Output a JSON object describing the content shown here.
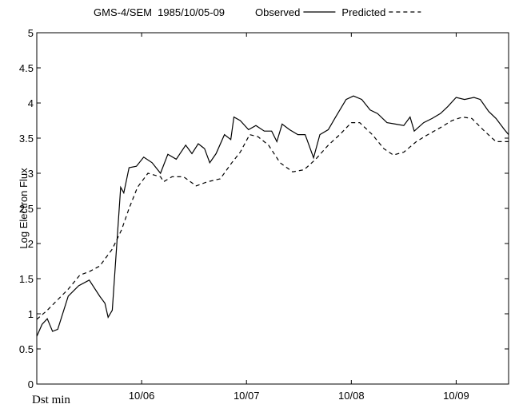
{
  "chart_data": {
    "type": "line",
    "title": "GMS-4/SEM  1985/10/05-09",
    "ylabel": "Log Electron Flux",
    "annotation": "Dst min",
    "xlim": [
      5,
      9.5
    ],
    "xticks": [
      {
        "value": 6,
        "label": "10/06"
      },
      {
        "value": 7,
        "label": "10/07"
      },
      {
        "value": 8,
        "label": "10/08"
      },
      {
        "value": 9,
        "label": "10/09"
      }
    ],
    "ylim": [
      0,
      5
    ],
    "yticks": [
      0,
      0.5,
      1,
      1.5,
      2,
      2.5,
      3,
      3.5,
      4,
      4.5,
      5
    ],
    "series": [
      {
        "name": "Observed",
        "color": "#000000",
        "dash": "solid",
        "x": [
          5.0,
          5.05,
          5.1,
          5.15,
          5.2,
          5.3,
          5.4,
          5.5,
          5.6,
          5.65,
          5.68,
          5.72,
          5.8,
          5.83,
          5.88,
          5.95,
          6.02,
          6.1,
          6.18,
          6.25,
          6.33,
          6.42,
          6.48,
          6.54,
          6.6,
          6.65,
          6.71,
          6.79,
          6.85,
          6.88,
          6.94,
          7.02,
          7.09,
          7.17,
          7.24,
          7.29,
          7.34,
          7.41,
          7.49,
          7.56,
          7.64,
          7.7,
          7.78,
          7.85,
          7.95,
          8.02,
          8.1,
          8.18,
          8.25,
          8.34,
          8.42,
          8.5,
          8.56,
          8.6,
          8.69,
          8.77,
          8.85,
          8.92,
          9.0,
          9.08,
          9.17,
          9.23,
          9.31,
          9.38,
          9.46,
          9.5
        ],
        "values": [
          0.68,
          0.85,
          0.93,
          0.75,
          0.78,
          1.25,
          1.4,
          1.48,
          1.25,
          1.15,
          0.95,
          1.05,
          2.8,
          2.72,
          3.08,
          3.1,
          3.23,
          3.15,
          3.0,
          3.27,
          3.2,
          3.4,
          3.28,
          3.42,
          3.35,
          3.15,
          3.28,
          3.55,
          3.48,
          3.8,
          3.75,
          3.62,
          3.68,
          3.6,
          3.6,
          3.45,
          3.7,
          3.62,
          3.55,
          3.55,
          3.22,
          3.55,
          3.62,
          3.8,
          4.05,
          4.1,
          4.05,
          3.9,
          3.85,
          3.72,
          3.7,
          3.68,
          3.8,
          3.6,
          3.72,
          3.78,
          3.85,
          3.95,
          4.08,
          4.05,
          4.08,
          4.05,
          3.88,
          3.78,
          3.62,
          3.55
        ]
      },
      {
        "name": "Predicted",
        "color": "#000000",
        "dash": "dashed",
        "x": [
          5.0,
          5.1,
          5.3,
          5.41,
          5.5,
          5.6,
          5.72,
          5.81,
          5.88,
          5.96,
          6.06,
          6.18,
          6.21,
          6.29,
          6.4,
          6.52,
          6.63,
          6.75,
          6.86,
          6.94,
          7.03,
          7.11,
          7.21,
          7.32,
          7.44,
          7.55,
          7.66,
          7.78,
          7.89,
          8.0,
          8.08,
          8.2,
          8.31,
          8.4,
          8.5,
          8.62,
          8.73,
          8.85,
          8.96,
          9.06,
          9.15,
          9.27,
          9.38,
          9.5
        ],
        "values": [
          0.92,
          1.05,
          1.35,
          1.55,
          1.6,
          1.68,
          1.92,
          2.2,
          2.5,
          2.8,
          3.0,
          2.95,
          2.88,
          2.95,
          2.95,
          2.82,
          2.88,
          2.92,
          3.15,
          3.3,
          3.55,
          3.52,
          3.4,
          3.15,
          3.02,
          3.05,
          3.2,
          3.4,
          3.55,
          3.72,
          3.72,
          3.55,
          3.35,
          3.26,
          3.3,
          3.45,
          3.55,
          3.65,
          3.75,
          3.8,
          3.78,
          3.6,
          3.45,
          3.45
        ]
      }
    ]
  }
}
